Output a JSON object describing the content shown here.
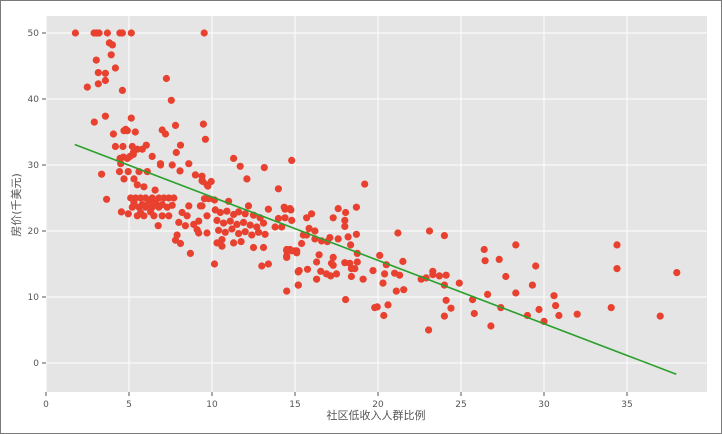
{
  "chart_data": {
    "type": "scatter",
    "title": "",
    "xlabel": "社区低收入人群比例",
    "ylabel": "房价(千美元)",
    "xlim": [
      0,
      40
    ],
    "ylim": [
      -4.4,
      52.5
    ],
    "x_ticks": [
      0,
      5,
      10,
      15,
      20,
      25,
      30,
      35
    ],
    "y_ticks": [
      0,
      10,
      20,
      30,
      40,
      50
    ],
    "grid": true,
    "legend": null,
    "colors": {
      "points": "#E8412F",
      "fit_line": "#2CA02C",
      "plot_background": "#E5E5E5",
      "grid": "#FFFFFF",
      "tick_text": "#555555"
    },
    "fit_line": {
      "x": [
        1.73,
        37.97
      ],
      "y": [
        33.1,
        -1.7
      ]
    },
    "points": [
      [
        1.77,
        50
      ],
      [
        2.9,
        50
      ],
      [
        3.05,
        50
      ],
      [
        3.2,
        50
      ],
      [
        3.7,
        50
      ],
      [
        4.45,
        50
      ],
      [
        4.6,
        50
      ],
      [
        5.14,
        50
      ],
      [
        9.53,
        50
      ],
      [
        3.82,
        48.5
      ],
      [
        4.0,
        48.2
      ],
      [
        3.93,
        46.7
      ],
      [
        3.03,
        45.9
      ],
      [
        4.18,
        44.7
      ],
      [
        3.15,
        44.0
      ],
      [
        3.58,
        43.9
      ],
      [
        3.15,
        42.3
      ],
      [
        3.58,
        42.8
      ],
      [
        2.49,
        41.8
      ],
      [
        4.6,
        41.3
      ],
      [
        7.25,
        43.1
      ],
      [
        7.55,
        39.8
      ],
      [
        3.58,
        37.4
      ],
      [
        2.91,
        36.5
      ],
      [
        5.14,
        37.1
      ],
      [
        4.7,
        35.2
      ],
      [
        4.8,
        35.4
      ],
      [
        4.9,
        35.2
      ],
      [
        5.38,
        35.0
      ],
      [
        7.0,
        35.3
      ],
      [
        7.2,
        34.7
      ],
      [
        7.8,
        36.0
      ],
      [
        9.48,
        36.2
      ],
      [
        9.6,
        33.9
      ],
      [
        4.06,
        34.7
      ],
      [
        4.18,
        32.8
      ],
      [
        4.63,
        32.8
      ],
      [
        5.2,
        32.8
      ],
      [
        5.5,
        32.4
      ],
      [
        5.8,
        32.4
      ],
      [
        6.04,
        33.0
      ],
      [
        6.4,
        31.3
      ],
      [
        7.85,
        31.9
      ],
      [
        8.1,
        33.0
      ],
      [
        5.26,
        31.6
      ],
      [
        4.9,
        31.0
      ],
      [
        6.9,
        30.0
      ],
      [
        7.6,
        30.0
      ],
      [
        8.6,
        30.2
      ],
      [
        3.35,
        28.6
      ],
      [
        3.65,
        24.8
      ],
      [
        4.54,
        22.9
      ],
      [
        4.96,
        22.6
      ],
      [
        4.46,
        31.0
      ],
      [
        4.66,
        31.2
      ],
      [
        5.06,
        31.3
      ],
      [
        5.26,
        31.9
      ],
      [
        4.5,
        30.2
      ],
      [
        4.43,
        29.0
      ],
      [
        4.95,
        29.0
      ],
      [
        5.6,
        29.0
      ],
      [
        6.1,
        29.0
      ],
      [
        4.7,
        27.9
      ],
      [
        5.3,
        27.9
      ],
      [
        5.5,
        27.0
      ],
      [
        5.9,
        26.7
      ],
      [
        6.9,
        30.2
      ],
      [
        8.07,
        29.1
      ],
      [
        9.0,
        28.5
      ],
      [
        9.4,
        28.3
      ],
      [
        9.4,
        27.6
      ],
      [
        9.7,
        27.0
      ],
      [
        6.57,
        26.2
      ],
      [
        5.1,
        25.0
      ],
      [
        5.4,
        25.0
      ],
      [
        5.7,
        25.0
      ],
      [
        6.0,
        25.0
      ],
      [
        6.4,
        25.0
      ],
      [
        6.8,
        25.0
      ],
      [
        7.1,
        25.0
      ],
      [
        7.4,
        25.0
      ],
      [
        7.7,
        25.0
      ],
      [
        5.2,
        23.6
      ],
      [
        5.6,
        23.6
      ],
      [
        6.0,
        23.6
      ],
      [
        6.4,
        23.6
      ],
      [
        6.8,
        23.6
      ],
      [
        7.3,
        23.6
      ],
      [
        5.5,
        22.3
      ],
      [
        5.9,
        22.3
      ],
      [
        6.5,
        22.3
      ],
      [
        7.0,
        22.3
      ],
      [
        7.4,
        22.3
      ],
      [
        6.76,
        20.8
      ],
      [
        5.3,
        24.3
      ],
      [
        5.8,
        24.0
      ],
      [
        6.2,
        24.4
      ],
      [
        6.6,
        24.2
      ],
      [
        7.0,
        24.0
      ],
      [
        7.6,
        23.9
      ],
      [
        6.3,
        22.9
      ],
      [
        5.7,
        22.8
      ],
      [
        8.2,
        22.8
      ],
      [
        8.5,
        22.3
      ],
      [
        8.6,
        23.8
      ],
      [
        8.0,
        21.3
      ],
      [
        8.4,
        20.8
      ],
      [
        8.9,
        21.0
      ],
      [
        9.2,
        21.5
      ],
      [
        7.9,
        19.4
      ],
      [
        7.8,
        18.6
      ],
      [
        8.1,
        18.1
      ],
      [
        8.7,
        16.6
      ],
      [
        9.1,
        20.2
      ],
      [
        9.2,
        19.7
      ],
      [
        9.7,
        19.7
      ],
      [
        9.4,
        23.8
      ],
      [
        9.7,
        22.3
      ],
      [
        11.3,
        31.0
      ],
      [
        11.7,
        29.8
      ],
      [
        13.15,
        29.6
      ],
      [
        14.8,
        30.7
      ],
      [
        12.1,
        27.9
      ],
      [
        14.0,
        26.4
      ],
      [
        9.45,
        27.5
      ],
      [
        9.75,
        26.8
      ],
      [
        9.95,
        27.5
      ],
      [
        9.55,
        24.9
      ],
      [
        9.8,
        24.9
      ],
      [
        10.15,
        24.7
      ],
      [
        9.3,
        23.8
      ],
      [
        11.0,
        24.5
      ],
      [
        12.2,
        23.8
      ],
      [
        10.2,
        23.2
      ],
      [
        10.5,
        22.8
      ],
      [
        10.9,
        23.0
      ],
      [
        11.3,
        22.5
      ],
      [
        11.6,
        22.9
      ],
      [
        12.0,
        22.6
      ],
      [
        12.5,
        22.4
      ],
      [
        12.9,
        22.0
      ],
      [
        10.3,
        21.6
      ],
      [
        10.7,
        21.2
      ],
      [
        11.1,
        21.5
      ],
      [
        11.5,
        21.0
      ],
      [
        11.9,
        21.3
      ],
      [
        12.3,
        20.9
      ],
      [
        12.7,
        20.6
      ],
      [
        13.1,
        21.2
      ],
      [
        10.4,
        20.1
      ],
      [
        10.8,
        19.8
      ],
      [
        11.2,
        20.3
      ],
      [
        11.6,
        19.6
      ],
      [
        12.0,
        19.9
      ],
      [
        12.4,
        19.4
      ],
      [
        12.8,
        19.8
      ],
      [
        13.2,
        19.5
      ],
      [
        13.4,
        23.3
      ],
      [
        14.4,
        23.3
      ],
      [
        14.75,
        23.2
      ],
      [
        14.0,
        21.9
      ],
      [
        14.4,
        22.0
      ],
      [
        13.8,
        20.6
      ],
      [
        14.2,
        20.6
      ],
      [
        10.15,
        15.0
      ],
      [
        13.0,
        14.7
      ],
      [
        13.4,
        15.0
      ],
      [
        15.25,
        14.0
      ],
      [
        12.5,
        17.5
      ],
      [
        13.1,
        17.5
      ],
      [
        11.3,
        18.2
      ],
      [
        10.6,
        17.7
      ],
      [
        10.3,
        18.2
      ],
      [
        10.6,
        18.7
      ],
      [
        11.75,
        18.4
      ],
      [
        14.5,
        17.0
      ],
      [
        15.0,
        17.0
      ],
      [
        14.5,
        16.2
      ],
      [
        14.7,
        17.2
      ],
      [
        15.1,
        16.7
      ],
      [
        15.2,
        13.9
      ],
      [
        15.2,
        11.8
      ],
      [
        14.5,
        10.9
      ],
      [
        14.35,
        23.6
      ],
      [
        14.7,
        23.4
      ],
      [
        16.0,
        22.6
      ],
      [
        15.7,
        22.0
      ],
      [
        14.8,
        21.6
      ],
      [
        17.6,
        23.4
      ],
      [
        18.05,
        22.8
      ],
      [
        18.7,
        23.6
      ],
      [
        17.3,
        22.0
      ],
      [
        18.0,
        21.6
      ],
      [
        18.0,
        20.7
      ],
      [
        15.85,
        20.4
      ],
      [
        16.2,
        20.0
      ],
      [
        15.5,
        19.4
      ],
      [
        15.7,
        19.4
      ],
      [
        16.2,
        18.8
      ],
      [
        16.6,
        18.5
      ],
      [
        17.1,
        19.0
      ],
      [
        16.95,
        18.4
      ],
      [
        17.6,
        18.8
      ],
      [
        18.2,
        19.1
      ],
      [
        18.7,
        19.5
      ],
      [
        21.2,
        19.7
      ],
      [
        23.1,
        20.0
      ],
      [
        24.0,
        19.3
      ],
      [
        18.35,
        17.9
      ],
      [
        15.4,
        18.1
      ],
      [
        14.5,
        17.2
      ],
      [
        14.8,
        17.0
      ],
      [
        15.1,
        17.0
      ],
      [
        14.5,
        16.0
      ],
      [
        16.45,
        16.4
      ],
      [
        17.3,
        16.0
      ],
      [
        17.2,
        15.1
      ],
      [
        17.3,
        14.8
      ],
      [
        18.0,
        15.2
      ],
      [
        18.3,
        15.1
      ],
      [
        18.4,
        14.3
      ],
      [
        18.6,
        14.3
      ],
      [
        18.75,
        16.6
      ],
      [
        18.75,
        15.3
      ],
      [
        16.3,
        15.3
      ],
      [
        15.75,
        14.2
      ],
      [
        15.2,
        13.8
      ],
      [
        16.55,
        13.9
      ],
      [
        16.9,
        13.5
      ],
      [
        17.15,
        13.2
      ],
      [
        17.5,
        13.5
      ],
      [
        16.3,
        12.7
      ],
      [
        18.4,
        13.1
      ],
      [
        19.1,
        12.7
      ],
      [
        15.2,
        11.8
      ],
      [
        19.2,
        27.1
      ],
      [
        20.1,
        16.3
      ],
      [
        20.5,
        14.9
      ],
      [
        21.5,
        15.4
      ],
      [
        19.7,
        14.0
      ],
      [
        20.4,
        13.5
      ],
      [
        21.0,
        13.6
      ],
      [
        21.3,
        13.3
      ],
      [
        20.3,
        12.1
      ],
      [
        21.1,
        10.9
      ],
      [
        21.55,
        11.1
      ],
      [
        22.6,
        12.7
      ],
      [
        22.9,
        12.9
      ],
      [
        23.3,
        13.9
      ],
      [
        23.3,
        13.4
      ],
      [
        23.7,
        13.2
      ],
      [
        24.1,
        13.3
      ],
      [
        24.0,
        11.8
      ],
      [
        24.1,
        9.5
      ],
      [
        24.4,
        8.3
      ],
      [
        24.0,
        7.1
      ],
      [
        18.05,
        9.6
      ],
      [
        19.8,
        8.4
      ],
      [
        19.95,
        8.5
      ],
      [
        20.6,
        8.8
      ],
      [
        20.35,
        7.2
      ],
      [
        23.05,
        5.0
      ],
      [
        24.9,
        12.1
      ],
      [
        26.4,
        17.2
      ],
      [
        26.45,
        15.5
      ],
      [
        27.3,
        15.7
      ],
      [
        28.3,
        17.9
      ],
      [
        27.7,
        13.1
      ],
      [
        29.5,
        14.7
      ],
      [
        29.3,
        11.8
      ],
      [
        28.3,
        10.6
      ],
      [
        26.6,
        10.4
      ],
      [
        25.7,
        9.6
      ],
      [
        25.8,
        7.5
      ],
      [
        26.8,
        5.6
      ],
      [
        27.4,
        8.4
      ],
      [
        29.0,
        7.2
      ],
      [
        29.7,
        8.1
      ],
      [
        30.0,
        6.3
      ],
      [
        30.6,
        10.2
      ],
      [
        30.7,
        8.7
      ],
      [
        30.9,
        7.2
      ],
      [
        32.0,
        7.4
      ],
      [
        34.05,
        8.4
      ],
      [
        34.4,
        17.9
      ],
      [
        34.4,
        14.3
      ],
      [
        37.0,
        7.1
      ],
      [
        38.0,
        13.7
      ]
    ]
  }
}
